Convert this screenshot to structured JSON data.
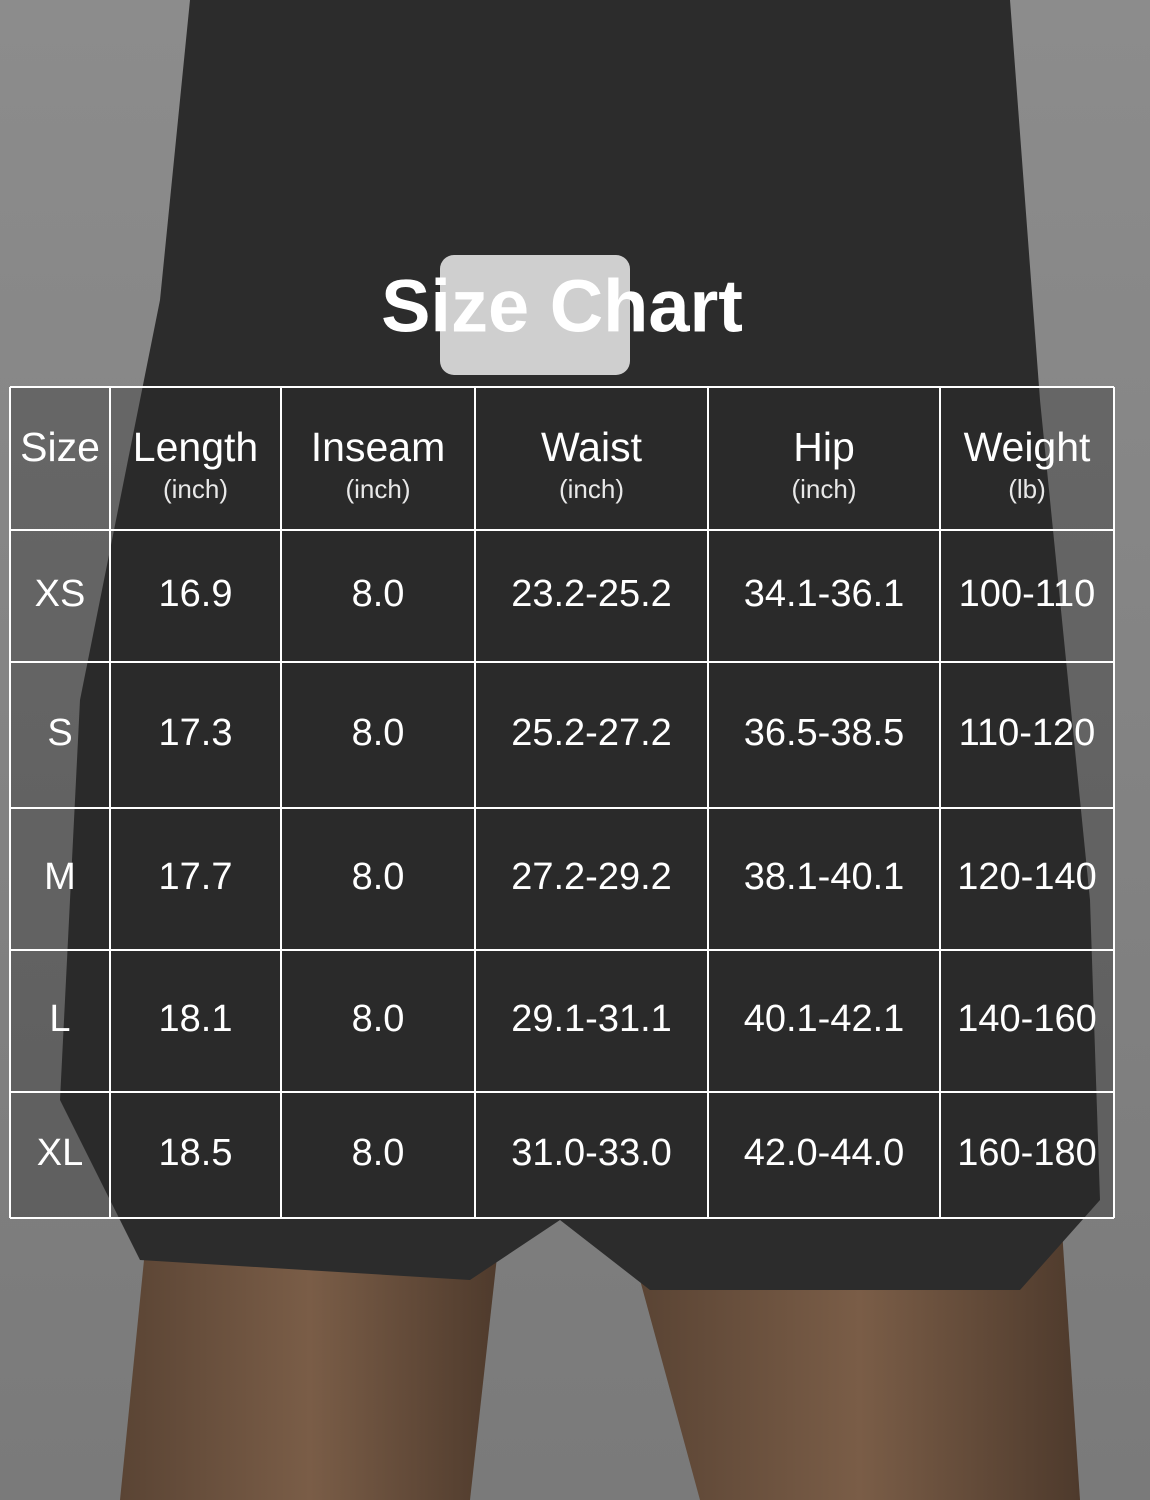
{
  "title": "Size Chart",
  "table": {
    "header": [
      {
        "name": "Size"
      },
      {
        "name": "Length",
        "unit": "(inch)"
      },
      {
        "name": "Inseam",
        "unit": "(inch)"
      },
      {
        "name": "Waist",
        "unit": "(inch)"
      },
      {
        "name": "Hip",
        "unit": "(inch)"
      },
      {
        "name": "Weight",
        "unit": "(lb)"
      }
    ],
    "rows": [
      [
        "XS",
        "16.9",
        "8.0",
        "23.2-25.2",
        "34.1-36.1",
        "100-110"
      ],
      [
        "S",
        "17.3",
        "8.0",
        "25.2-27.2",
        "36.5-38.5",
        "110-120"
      ],
      [
        "M",
        "17.7",
        "8.0",
        "27.2-29.2",
        "38.1-40.1",
        "120-140"
      ],
      [
        "L",
        "18.1",
        "8.0",
        "29.1-31.1",
        "40.1-42.1",
        "140-160"
      ],
      [
        "XL",
        "18.5",
        "8.0",
        "31.0-33.0",
        "42.0-44.0",
        "160-180"
      ]
    ]
  }
}
